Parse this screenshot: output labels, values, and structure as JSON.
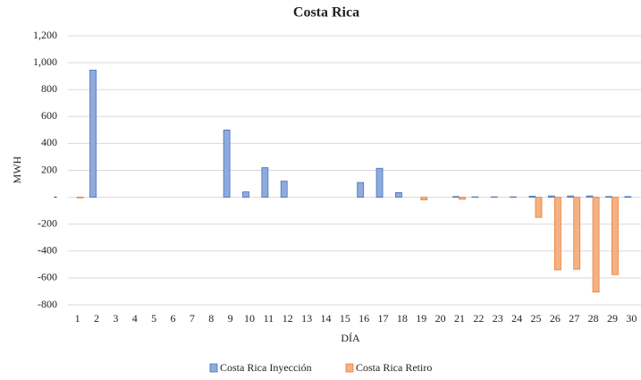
{
  "chart_data": {
    "type": "bar",
    "title": "Costa Rica",
    "x_label": "DÍA",
    "y_label": "MWH",
    "categories": [
      "1",
      "2",
      "3",
      "4",
      "5",
      "6",
      "7",
      "8",
      "9",
      "10",
      "11",
      "12",
      "13",
      "14",
      "15",
      "16",
      "17",
      "18",
      "19",
      "20",
      "21",
      "22",
      "23",
      "24",
      "25",
      "26",
      "27",
      "28",
      "29",
      "30"
    ],
    "series": [
      {
        "name": "Costa Rica Inyección",
        "color": "#8faadc",
        "stroke": "#4472c4",
        "values": [
          0,
          945,
          0,
          0,
          0,
          0,
          0,
          0,
          500,
          40,
          220,
          120,
          0,
          0,
          0,
          110,
          215,
          35,
          0,
          0,
          5,
          3,
          3,
          3,
          8,
          10,
          10,
          10,
          5,
          5
        ]
      },
      {
        "name": "Costa Rica Retiro",
        "color": "#f4b183",
        "stroke": "#ed7d31",
        "values": [
          -5,
          0,
          0,
          0,
          0,
          0,
          0,
          0,
          0,
          0,
          0,
          0,
          0,
          0,
          0,
          0,
          0,
          0,
          -20,
          0,
          -15,
          0,
          0,
          0,
          -150,
          -540,
          -535,
          -705,
          -575,
          0
        ]
      }
    ],
    "ylim": [
      -800,
      1200
    ],
    "yticks": [
      -800,
      -600,
      -400,
      -200,
      {
        "value": 0,
        "label": "-"
      },
      200,
      400,
      600,
      800,
      {
        "value": 1000,
        "label": "1,000"
      },
      {
        "value": 1200,
        "label": "1,200"
      }
    ],
    "grid": true,
    "legend": "bottom"
  }
}
